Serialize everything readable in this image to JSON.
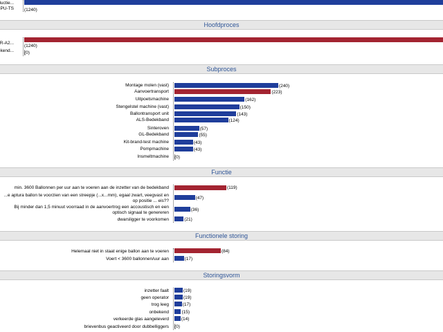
{
  "colors": {
    "primary": "#1f3e9b",
    "highlight": "#a32431",
    "header_bg": "#e7e7e7",
    "header_text": "#2f5597"
  },
  "chart_data": [
    {
      "type": "bar",
      "title": "",
      "categories": [
        "...ductie",
        "PU-TS"
      ],
      "values": [
        null,
        1240
      ],
      "highlight": [
        true,
        false
      ]
    },
    {
      "type": "bar",
      "title": "Hoofdproces",
      "categories": [
        "...OR-A2",
        "...bekend"
      ],
      "values": [
        1240,
        0
      ],
      "highlight": [
        true,
        false
      ]
    },
    {
      "type": "bar",
      "title": "Subproces",
      "categories": [
        "Montage molen (vast)",
        "Aanvoertransport",
        "Uitpoetsmachine",
        "Stengelstel machine (vast)",
        "Ballontransport unit",
        "ALS-Bedekband",
        "Sinteroven",
        "GL-Bedekband",
        "Kit-brand-test machine",
        "Pompmachine",
        "Insmeltmachine"
      ],
      "values": [
        240,
        223,
        162,
        150,
        143,
        124,
        57,
        55,
        43,
        43,
        0
      ],
      "highlight": [
        false,
        true,
        false,
        false,
        false,
        false,
        false,
        false,
        false,
        false,
        false
      ]
    },
    {
      "type": "bar",
      "title": "Functie",
      "categories": [
        "min. 3600 Ballonnen per uur aan te voeren aan de inzetter van de bedekband",
        "...e aptura ballon te voorzien van een streepje (...x...mm), egaal zwart, veegvast en op positie ... eis??",
        "Bij minder dan 1,5 minuut voorraad in de aanvoertrog een accoustisch en een optisch signaal te genereren",
        "dwarsligger te voorkomen"
      ],
      "values": [
        119,
        47,
        36,
        21
      ],
      "highlight": [
        true,
        false,
        false,
        false
      ]
    },
    {
      "type": "bar",
      "title": "Functionele storing",
      "categories": [
        "Helemaal niet in staat enige ballon aan te voeren",
        "Voert < 3600 ballonnen/uur aan"
      ],
      "values": [
        84,
        17
      ],
      "highlight": [
        true,
        false
      ]
    },
    {
      "type": "bar",
      "title": "Storingsvorm",
      "categories": [
        "inzetter faalt",
        "geen operator",
        "trog leeg",
        "onbekend",
        "verkeerde glas aangeleverd",
        "brievenbus geactiveerd door dubbelliggers"
      ],
      "values": [
        19,
        19,
        17,
        15,
        14,
        0
      ],
      "highlight": [
        false,
        false,
        false,
        false,
        false,
        false
      ]
    }
  ]
}
